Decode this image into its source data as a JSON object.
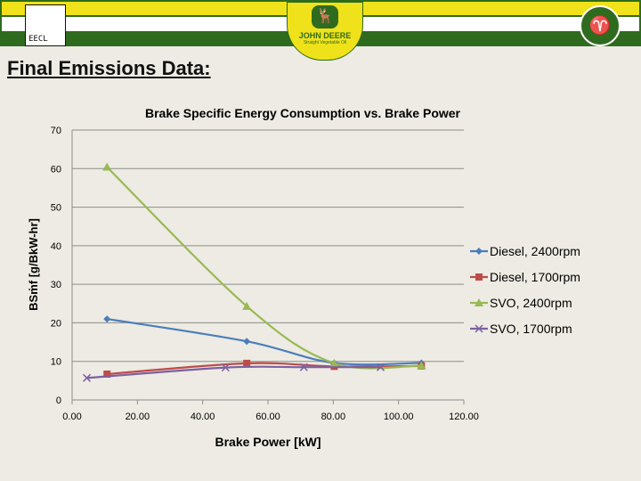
{
  "slide": {
    "title": "Final Emissions Data:",
    "logos": {
      "left": "EECL",
      "center_line1": "JOHN DEERE",
      "center_line2": "Straight Vegetable Oil"
    }
  },
  "chart_data": {
    "type": "line",
    "title": "Brake Specific Energy Consumption vs. Brake Power",
    "xlabel": "Brake Power [kW]",
    "ylabel": "BSṁf [g/BkW-hr]",
    "xlim": [
      0,
      120
    ],
    "ylim": [
      0,
      70
    ],
    "xticks": [
      "0.00",
      "20.00",
      "40.00",
      "60.00",
      "80.00",
      "100.00",
      "120.00"
    ],
    "yticks": [
      "0",
      "10",
      "20",
      "30",
      "40",
      "50",
      "60",
      "70"
    ],
    "grid": true,
    "legend": "right",
    "series": [
      {
        "name": "Diesel, 2400rpm",
        "color": "#4a7ebb",
        "marker": "diamond",
        "x": [
          10.7,
          53.5,
          80.3,
          107
        ],
        "y": [
          21.0,
          15.2,
          9.6,
          9.6
        ]
      },
      {
        "name": "Diesel, 1700rpm",
        "color": "#be4b48",
        "marker": "square",
        "x": [
          10.7,
          53.5,
          80.3,
          107
        ],
        "y": [
          6.7,
          9.5,
          8.7,
          8.8
        ]
      },
      {
        "name": "SVO, 2400rpm",
        "color": "#98b954",
        "marker": "triangle",
        "x": [
          10.7,
          53.5,
          80.3,
          107
        ],
        "y": [
          60.4,
          24.3,
          9.5,
          8.9
        ]
      },
      {
        "name": "SVO, 1700rpm",
        "color": "#7d60a0",
        "marker": "x",
        "x": [
          4.5,
          47,
          71,
          94.5
        ],
        "y": [
          5.7,
          8.4,
          8.5,
          8.5
        ]
      }
    ]
  }
}
